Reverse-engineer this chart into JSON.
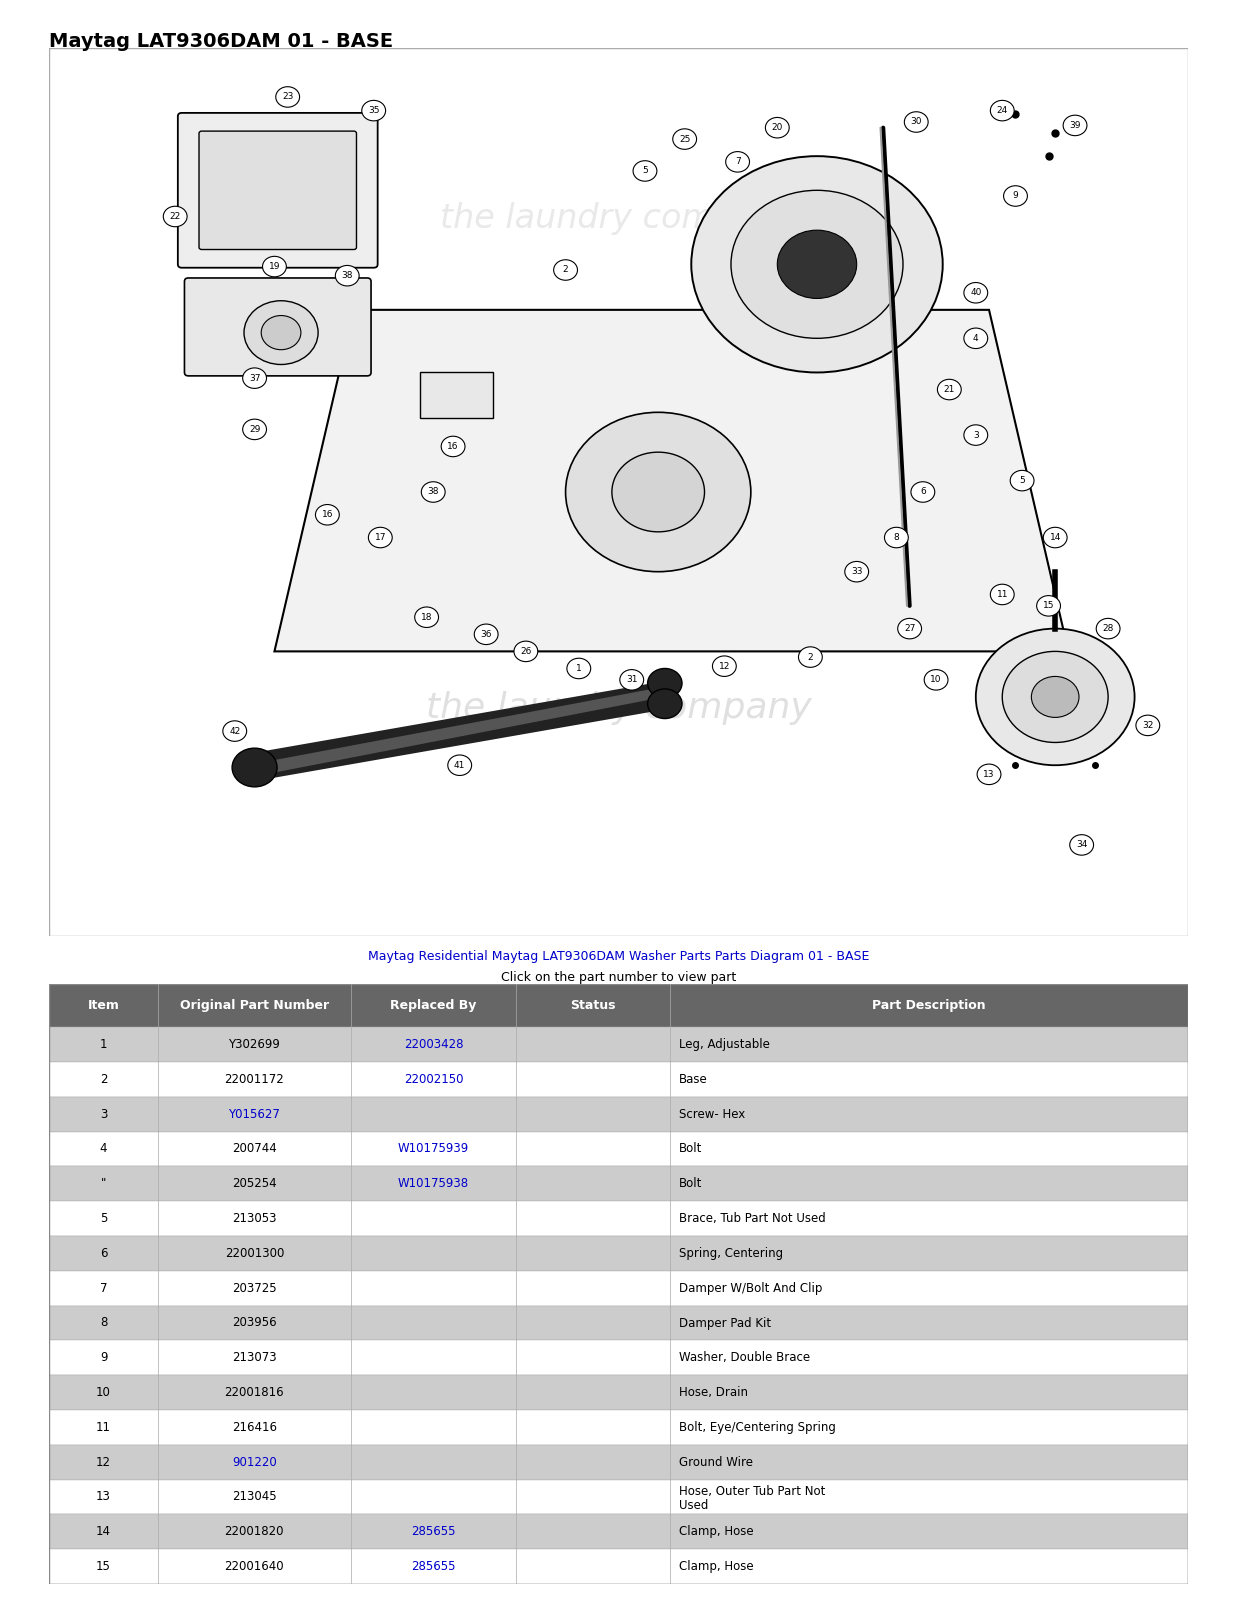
{
  "title": "Maytag LAT9306DAM 01 - BASE",
  "subtitle_line1": "Maytag Residential Maytag LAT9306DAM Washer Parts Parts Diagram 01 - BASE",
  "subtitle_line2": "Click on the part number to view part",
  "table_header": [
    "Item",
    "Original Part Number",
    "Replaced By",
    "Status",
    "Part Description"
  ],
  "header_bg": "#666666",
  "header_fg": "#ffffff",
  "row_bg_odd": "#cccccc",
  "row_bg_even": "#ffffff",
  "link_color": "#0000cc",
  "rows": [
    [
      "1",
      "Y302699",
      "22003428",
      "",
      "Leg, Adjustable"
    ],
    [
      "2",
      "22001172",
      "22002150",
      "",
      "Base"
    ],
    [
      "3",
      "Y015627",
      "",
      "",
      "Screw- Hex"
    ],
    [
      "4",
      "200744",
      "W10175939",
      "",
      "Bolt"
    ],
    [
      "\"",
      "205254",
      "W10175938",
      "",
      "Bolt"
    ],
    [
      "5",
      "213053",
      "",
      "",
      "Brace, Tub Part Not Used"
    ],
    [
      "6",
      "22001300",
      "",
      "",
      "Spring, Centering"
    ],
    [
      "7",
      "203725",
      "",
      "",
      "Damper W/Bolt And Clip"
    ],
    [
      "8",
      "203956",
      "",
      "",
      "Damper Pad Kit"
    ],
    [
      "9",
      "213073",
      "",
      "",
      "Washer, Double Brace"
    ],
    [
      "10",
      "22001816",
      "",
      "",
      "Hose, Drain"
    ],
    [
      "11",
      "216416",
      "",
      "",
      "Bolt, Eye/Centering Spring"
    ],
    [
      "12",
      "901220",
      "",
      "",
      "Ground Wire"
    ],
    [
      "13",
      "213045",
      "",
      "",
      "Hose, Outer Tub Part Not\nUsed"
    ],
    [
      "14",
      "22001820",
      "285655",
      "",
      "Clamp, Hose"
    ],
    [
      "15",
      "22001640",
      "285655",
      "",
      "Clamp, Hose"
    ]
  ],
  "orig_link_cols1": [
    "Y015627",
    "901220"
  ],
  "link_col2": [
    "22003428",
    "22002150",
    "W10175939",
    "W10175938",
    "213053",
    "22001300",
    "203725",
    "203956",
    "213073",
    "22001816",
    "216416",
    "213045",
    "285655"
  ],
  "fig_bg": "#ffffff"
}
